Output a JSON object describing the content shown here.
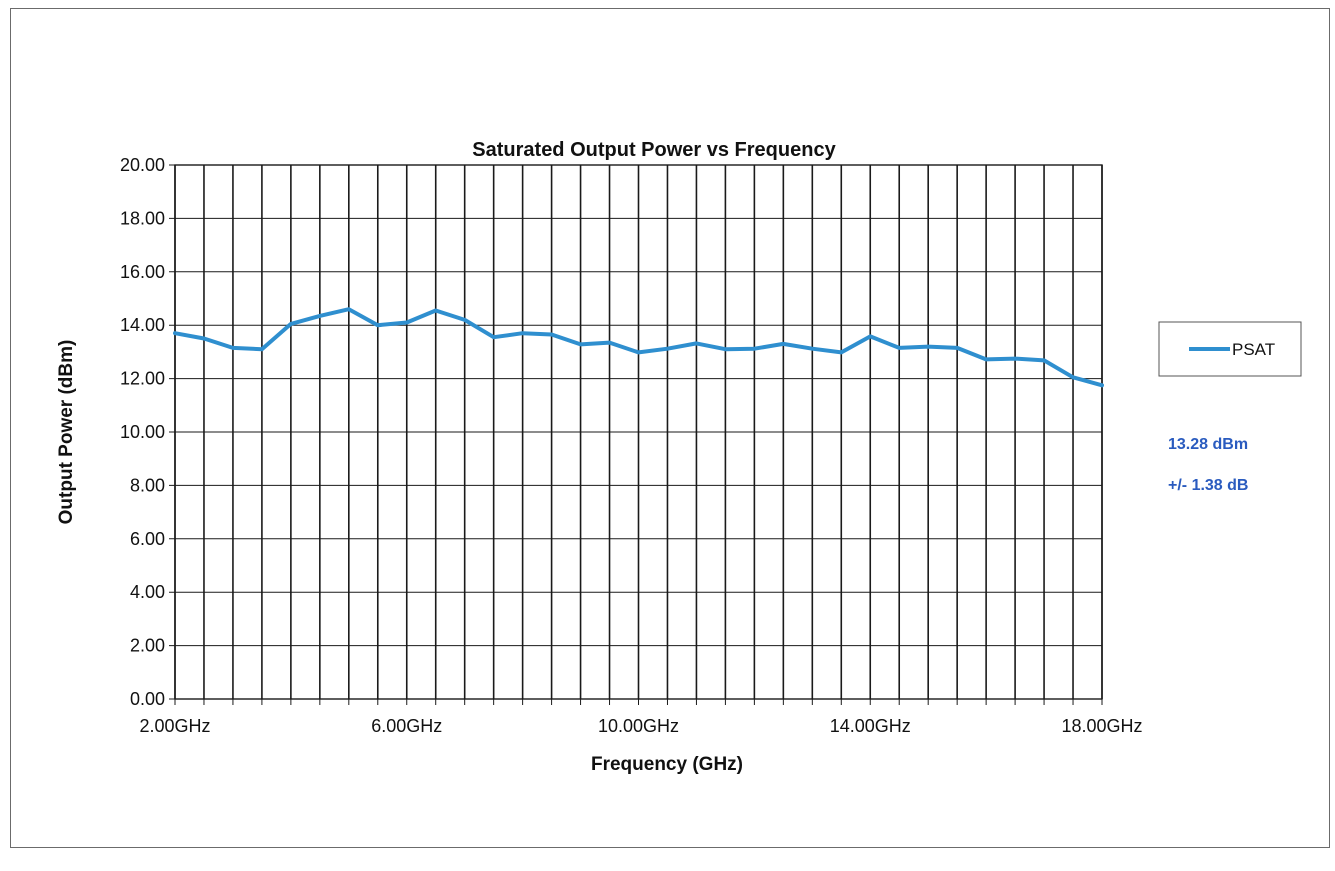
{
  "chart_data": {
    "type": "line",
    "title": "Saturated Output Power vs Frequency",
    "xlabel": "Frequency (GHz)",
    "ylabel": "Output Power (dBm)",
    "xlim": [
      2.0,
      18.0
    ],
    "ylim": [
      0.0,
      20.0
    ],
    "x_tick_values": [
      2.0,
      6.0,
      10.0,
      14.0,
      18.0
    ],
    "x_tick_labels": [
      "2.00GHz",
      "6.00GHz",
      "10.00GHz",
      "14.00GHz",
      "18.00GHz"
    ],
    "y_tick_values": [
      0,
      2,
      4,
      6,
      8,
      10,
      12,
      14,
      16,
      18,
      20
    ],
    "y_tick_labels": [
      "0.00",
      "2.00",
      "4.00",
      "6.00",
      "8.00",
      "10.00",
      "12.00",
      "14.00",
      "16.00",
      "18.00",
      "20.00"
    ],
    "x_grid_step": 0.5,
    "y_grid_step": 2,
    "grid": true,
    "legend_position": "right",
    "line_color": "#2f8fcf",
    "series": [
      {
        "name": "PSAT",
        "x": [
          2.0,
          2.5,
          3.0,
          3.5,
          4.0,
          4.5,
          5.0,
          5.5,
          6.0,
          6.5,
          7.0,
          7.5,
          8.0,
          8.5,
          9.0,
          9.5,
          10.0,
          10.5,
          11.0,
          11.5,
          12.0,
          12.5,
          13.0,
          13.5,
          14.0,
          14.5,
          15.0,
          15.5,
          16.0,
          16.5,
          17.0,
          17.5,
          18.0
        ],
        "y": [
          13.7,
          13.5,
          13.15,
          13.1,
          14.05,
          14.35,
          14.6,
          14.0,
          14.1,
          14.55,
          14.2,
          13.55,
          13.7,
          13.65,
          13.28,
          13.35,
          12.98,
          13.12,
          13.32,
          13.1,
          13.12,
          13.3,
          13.12,
          12.98,
          13.58,
          13.15,
          13.2,
          13.15,
          12.72,
          12.75,
          12.68,
          12.05,
          11.75
        ]
      }
    ],
    "annotations": [
      "13.28 dBm",
      "+/- 1.38 dB"
    ]
  }
}
